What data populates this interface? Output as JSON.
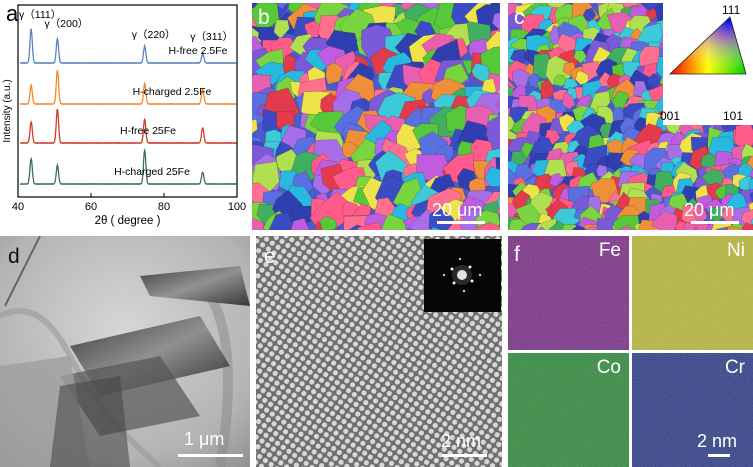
{
  "panels": {
    "a": {
      "label": "a"
    },
    "b": {
      "label": "b",
      "scale": "20 μm"
    },
    "c": {
      "label": "c",
      "scale": "20 μm"
    },
    "d": {
      "label": "d",
      "scale": "1 μm"
    },
    "e": {
      "label": "e",
      "scale": "2 nm"
    },
    "f": {
      "label": "f",
      "scale": "2 nm"
    }
  },
  "ipf_legend": {
    "corners": [
      "111",
      "001",
      "101"
    ]
  },
  "eds_maps": [
    {
      "element": "Fe",
      "color": "#7a2f86"
    },
    {
      "element": "Ni",
      "color": "#b8b63a"
    },
    {
      "element": "Co",
      "color": "#2f8a3c"
    },
    {
      "element": "Cr",
      "color": "#2e3d87"
    }
  ],
  "chart_data": {
    "type": "line",
    "xlabel": "2θ ( degree )",
    "ylabel": "Intensity (a.u.)",
    "xlim": [
      40,
      100
    ],
    "xticks": [
      40,
      60,
      80,
      100
    ],
    "peak_labels": [
      {
        "text": "γ（111）",
        "x": 43.6
      },
      {
        "text": "γ（200）",
        "x": 50.8
      },
      {
        "text": "γ（220）",
        "x": 74.7
      },
      {
        "text": "γ（311）",
        "x": 90.6
      }
    ],
    "peak_positions": [
      43.6,
      50.8,
      74.7,
      90.6
    ],
    "series": [
      {
        "name": "H-free 2.5Fe",
        "color": "#5b84c4",
        "relative_intensity": [
          1.0,
          0.72,
          0.5,
          0.28
        ]
      },
      {
        "name": "H-charged 2.5Fe",
        "color": "#ef8a2f",
        "relative_intensity": [
          0.55,
          1.0,
          0.6,
          0.45
        ]
      },
      {
        "name": "H-free 25Fe",
        "color": "#cf3d2e",
        "relative_intensity": [
          0.62,
          1.0,
          0.7,
          0.45
        ]
      },
      {
        "name": "H-charged 25Fe",
        "color": "#3b6f6c",
        "relative_intensity": [
          0.75,
          0.55,
          1.0,
          0.35
        ]
      }
    ]
  }
}
